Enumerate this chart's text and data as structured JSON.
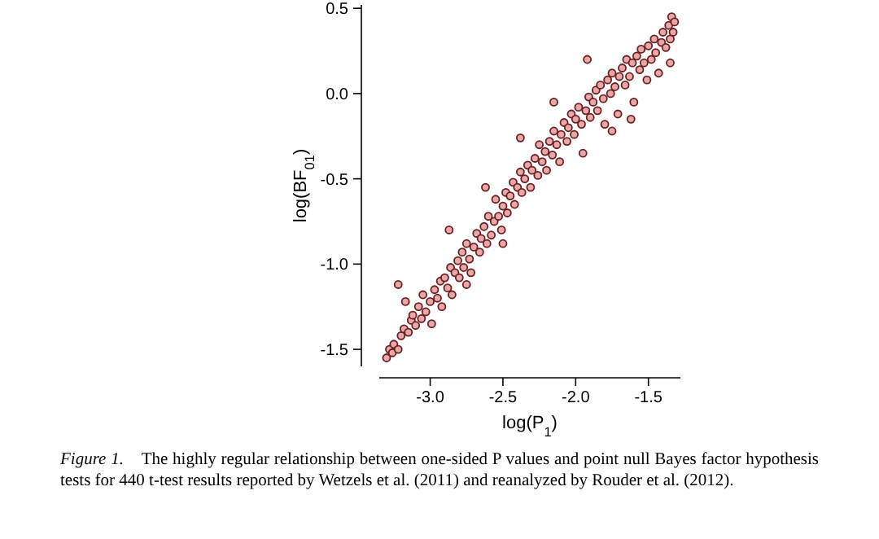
{
  "chart_data": {
    "type": "scatter",
    "xlabel": "log(P$_{1}$)",
    "ylabel": "log(BF$_{01}$)",
    "xlim": [
      -3.35,
      -1.28
    ],
    "ylim": [
      -1.6,
      0.52
    ],
    "xticks": [
      {
        "value": -3,
        "label": "-3.0"
      },
      {
        "value": -2.5,
        "label": "-2.5"
      },
      {
        "value": -2,
        "label": "-2.0"
      },
      {
        "value": -1.5,
        "label": "-1.5"
      }
    ],
    "yticks": [
      {
        "value": -1.5,
        "label": "-1.5"
      },
      {
        "value": -1,
        "label": "-1.0"
      },
      {
        "value": -0.5,
        "label": "-0.5"
      },
      {
        "value": 0,
        "label": "0.0"
      },
      {
        "value": 0.5,
        "label": "0.5"
      }
    ],
    "grid": false,
    "marker": "circle",
    "annotations": [
      "Figure 1.",
      "The highly regular relationship between one-sided P values and point null Bayes factor hypothesis tests for 440 t-test results reported by Wetzels et al. (2011) and reanalyzed by Rouder et al. (2012)."
    ],
    "series": [
      {
        "color": "#6b1f1f",
        "x": [
          -3.3,
          -3.28,
          -3.26,
          -3.25,
          -3.22,
          -3.2,
          -3.18,
          -3.17,
          -3.15,
          -3.13,
          -3.12,
          -3.1,
          -3.08,
          -3.06,
          -3.05,
          -3.03,
          -3.0,
          -2.99,
          -2.97,
          -2.95,
          -2.93,
          -2.92,
          -2.9,
          -2.88,
          -2.86,
          -2.85,
          -2.83,
          -2.81,
          -2.8,
          -2.78,
          -2.77,
          -2.75,
          -2.73,
          -2.72,
          -2.7,
          -2.68,
          -2.66,
          -2.65,
          -2.63,
          -2.61,
          -2.6,
          -2.58,
          -2.56,
          -2.55,
          -2.53,
          -2.51,
          -2.5,
          -2.48,
          -2.47,
          -2.45,
          -2.43,
          -2.42,
          -2.4,
          -2.38,
          -2.37,
          -2.35,
          -2.33,
          -2.31,
          -2.3,
          -2.28,
          -2.26,
          -2.25,
          -2.23,
          -2.21,
          -2.2,
          -2.18,
          -2.16,
          -2.15,
          -2.13,
          -2.11,
          -2.1,
          -2.08,
          -2.06,
          -2.05,
          -2.03,
          -2.01,
          -2.0,
          -1.98,
          -1.96,
          -1.95,
          -1.93,
          -1.91,
          -1.9,
          -1.88,
          -1.86,
          -1.85,
          -1.83,
          -1.81,
          -1.8,
          -1.78,
          -1.76,
          -1.75,
          -1.73,
          -1.71,
          -1.7,
          -1.68,
          -1.66,
          -1.65,
          -1.63,
          -1.61,
          -1.6,
          -1.58,
          -1.56,
          -1.55,
          -1.53,
          -1.51,
          -1.5,
          -1.48,
          -1.46,
          -1.45,
          -1.43,
          -1.41,
          -1.4,
          -1.38,
          -1.36,
          -1.35,
          -1.34,
          -1.33,
          -1.32,
          -1.35,
          -3.22,
          -2.87,
          -2.62,
          -2.38,
          -2.15,
          -1.92,
          -2.75,
          -2.5,
          -1.75,
          -1.62
        ],
        "values": [
          -1.55,
          -1.5,
          -1.52,
          -1.47,
          -1.5,
          -1.42,
          -1.38,
          -1.22,
          -1.4,
          -1.33,
          -1.3,
          -1.36,
          -1.25,
          -1.32,
          -1.18,
          -1.28,
          -1.22,
          -1.35,
          -1.15,
          -1.2,
          -1.1,
          -1.25,
          -1.08,
          -1.14,
          -1.02,
          -1.18,
          -1.05,
          -0.98,
          -1.08,
          -0.93,
          -1.02,
          -0.88,
          -0.97,
          -1.05,
          -0.9,
          -0.82,
          -0.93,
          -0.85,
          -0.78,
          -0.88,
          -0.72,
          -0.83,
          -0.75,
          -0.62,
          -0.72,
          -0.8,
          -0.66,
          -0.58,
          -0.7,
          -0.6,
          -0.52,
          -0.65,
          -0.55,
          -0.46,
          -0.58,
          -0.5,
          -0.42,
          -0.55,
          -0.45,
          -0.38,
          -0.48,
          -0.3,
          -0.4,
          -0.34,
          -0.45,
          -0.28,
          -0.36,
          -0.22,
          -0.3,
          -0.4,
          -0.24,
          -0.17,
          -0.28,
          -0.2,
          -0.12,
          -0.24,
          -0.15,
          -0.08,
          -0.18,
          -0.35,
          -0.1,
          -0.02,
          -0.14,
          -0.05,
          0.02,
          -0.1,
          0.05,
          -0.03,
          -0.18,
          0.08,
          0.0,
          0.12,
          0.04,
          -0.12,
          0.1,
          0.15,
          0.05,
          0.2,
          0.1,
          0.18,
          -0.05,
          0.22,
          0.14,
          0.26,
          0.18,
          0.08,
          0.28,
          0.2,
          0.32,
          0.24,
          0.12,
          0.3,
          0.36,
          0.27,
          0.4,
          0.32,
          0.45,
          0.36,
          0.42,
          0.18,
          -1.12,
          -0.8,
          -0.55,
          -0.26,
          -0.05,
          0.2,
          -1.12,
          -0.88,
          -0.22,
          -0.15
        ]
      }
    ]
  }
}
